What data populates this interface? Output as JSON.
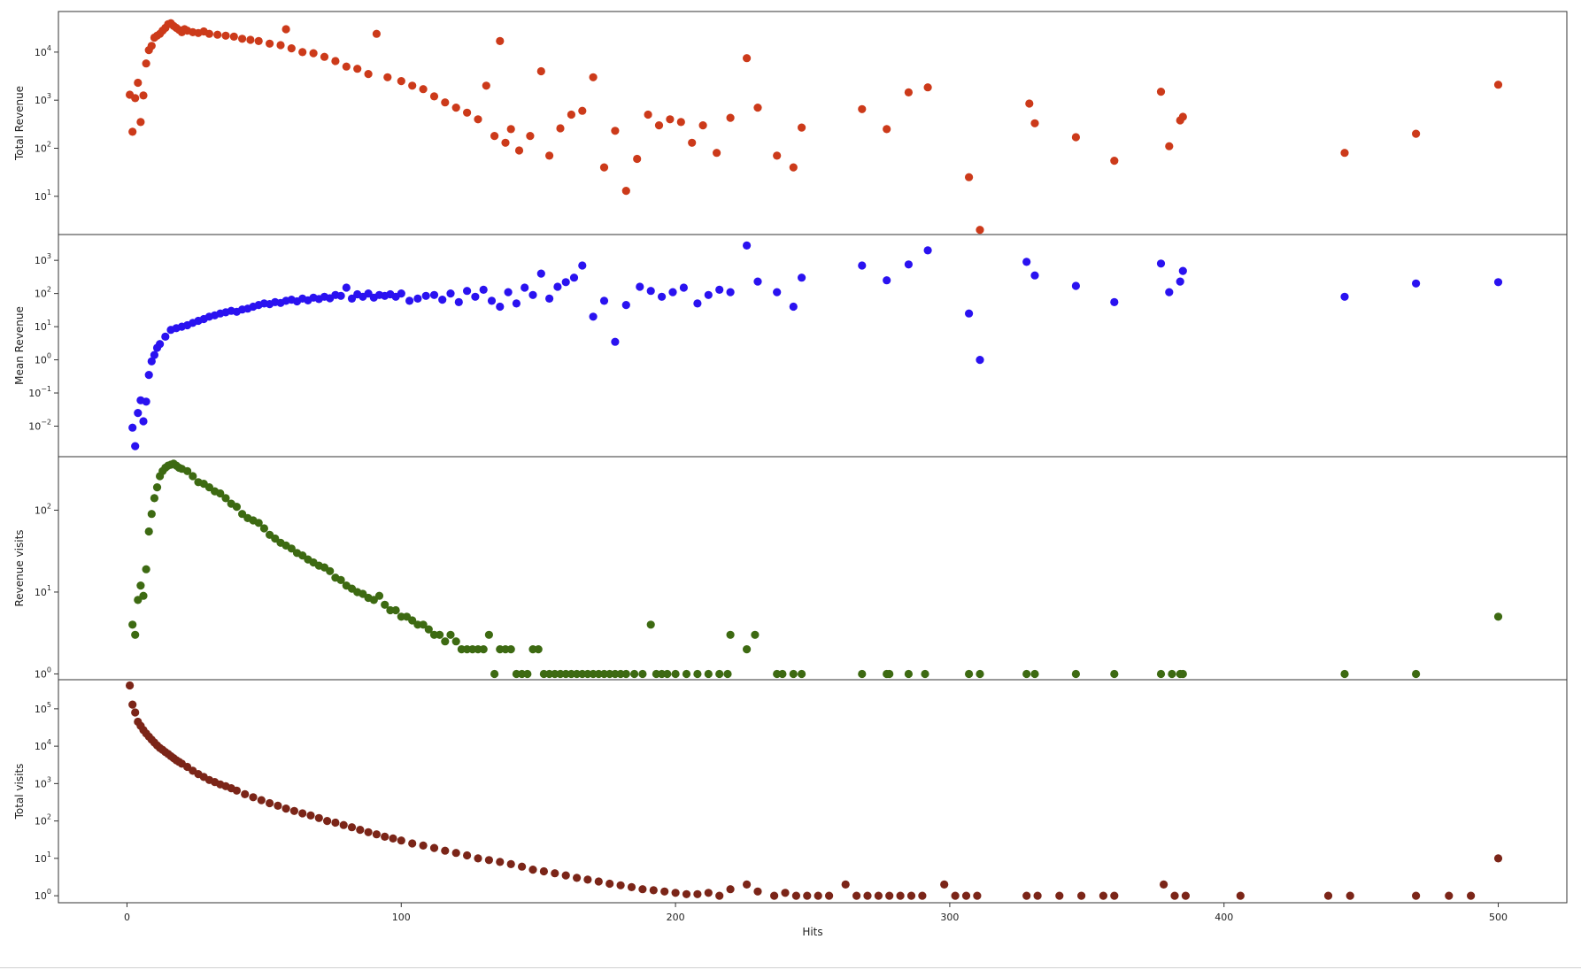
{
  "chart_data": [
    {
      "type": "scatter",
      "ylabel": "Total Revenue",
      "xlabel": "",
      "yscale": "log",
      "color": "#cc3a1a",
      "xlim": [
        -25,
        525
      ],
      "ylim": [
        1.6,
        70000
      ],
      "yticks": [
        {
          "v": 10,
          "e": "1"
        },
        {
          "v": 100,
          "e": "2"
        },
        {
          "v": 1000,
          "e": "3"
        },
        {
          "v": 10000,
          "e": "4"
        }
      ],
      "x": [
        1,
        2,
        3,
        4,
        5,
        6,
        7,
        8,
        9,
        10,
        11,
        12,
        13,
        14,
        15,
        16,
        17,
        18,
        19,
        20,
        21,
        22,
        24,
        26,
        28,
        30,
        33,
        36,
        39,
        42,
        45,
        48,
        52,
        56,
        58,
        60,
        64,
        68,
        72,
        76,
        80,
        84,
        88,
        91,
        95,
        100,
        104,
        108,
        112,
        116,
        120,
        124,
        128,
        131,
        134,
        136,
        138,
        140,
        143,
        147,
        151,
        154,
        158,
        162,
        166,
        170,
        174,
        178,
        182,
        186,
        190,
        194,
        198,
        202,
        206,
        210,
        215,
        220,
        226,
        230,
        237,
        243,
        246,
        268,
        277,
        285,
        292,
        307,
        311,
        329,
        331,
        346,
        360,
        377,
        380,
        384,
        385,
        444,
        470,
        500
      ],
      "y": [
        1300,
        220,
        1100,
        2300,
        350,
        1250,
        5800,
        11000,
        13500,
        20000,
        22000,
        24000,
        28000,
        32000,
        38000,
        40000,
        35000,
        32000,
        29000,
        26000,
        30000,
        28000,
        26000,
        25000,
        27000,
        24000,
        23000,
        22000,
        21000,
        19000,
        18000,
        17000,
        15000,
        14000,
        30000,
        12000,
        10000,
        9500,
        8000,
        6500,
        5000,
        4500,
        3500,
        24000,
        3000,
        2500,
        2000,
        1700,
        1200,
        900,
        700,
        550,
        400,
        2000,
        180,
        17000,
        130,
        250,
        90,
        180,
        4000,
        70,
        260,
        500,
        600,
        3000,
        40,
        230,
        13,
        60,
        500,
        300,
        400,
        350,
        130,
        300,
        80,
        430,
        7500,
        700,
        70,
        40,
        270,
        650,
        250,
        1450,
        1850,
        25,
        2,
        850,
        330,
        170,
        55,
        1500,
        110,
        380,
        450,
        80,
        200,
        2100
      ]
    },
    {
      "type": "scatter",
      "ylabel": "Mean Revenue",
      "xlabel": "",
      "yscale": "log",
      "color": "#2a12f0",
      "xlim": [
        -25,
        525
      ],
      "ylim": [
        0.0012,
        6000
      ],
      "yticks": [
        {
          "v": 0.01,
          "e": "−2"
        },
        {
          "v": 0.1,
          "e": "−1"
        },
        {
          "v": 1,
          "e": "0"
        },
        {
          "v": 10,
          "e": "1"
        },
        {
          "v": 100,
          "e": "2"
        },
        {
          "v": 1000,
          "e": "3"
        }
      ],
      "x": [
        2,
        3,
        4,
        5,
        6,
        7,
        8,
        9,
        10,
        11,
        12,
        14,
        16,
        18,
        20,
        22,
        24,
        26,
        28,
        30,
        32,
        34,
        36,
        38,
        40,
        42,
        44,
        46,
        48,
        50,
        52,
        54,
        56,
        58,
        60,
        62,
        64,
        66,
        68,
        70,
        72,
        74,
        76,
        78,
        80,
        82,
        84,
        86,
        88,
        90,
        92,
        94,
        96,
        98,
        100,
        103,
        106,
        109,
        112,
        115,
        118,
        121,
        124,
        127,
        130,
        133,
        136,
        139,
        142,
        145,
        148,
        151,
        154,
        157,
        160,
        163,
        166,
        170,
        174,
        178,
        182,
        187,
        191,
        195,
        199,
        203,
        208,
        212,
        216,
        220,
        226,
        230,
        237,
        243,
        246,
        268,
        277,
        285,
        292,
        307,
        311,
        328,
        331,
        346,
        360,
        377,
        380,
        384,
        385,
        444,
        470,
        500
      ],
      "y": [
        0.009,
        0.0025,
        0.025,
        0.06,
        0.014,
        0.055,
        0.35,
        0.9,
        1.4,
        2.3,
        3,
        5,
        8,
        9,
        10,
        11,
        13,
        15,
        17,
        20,
        22,
        25,
        27,
        30,
        28,
        33,
        35,
        40,
        45,
        50,
        48,
        55,
        52,
        60,
        65,
        58,
        70,
        62,
        75,
        68,
        80,
        72,
        90,
        85,
        150,
        70,
        95,
        80,
        100,
        75,
        90,
        85,
        95,
        80,
        100,
        60,
        70,
        85,
        90,
        65,
        100,
        55,
        120,
        80,
        130,
        60,
        40,
        110,
        50,
        150,
        90,
        400,
        70,
        160,
        220,
        300,
        700,
        20,
        60,
        3.5,
        45,
        160,
        120,
        80,
        110,
        150,
        50,
        90,
        130,
        110,
        2800,
        230,
        110,
        40,
        300,
        700,
        250,
        750,
        2000,
        25,
        1,
        900,
        350,
        170,
        55,
        800,
        110,
        230,
        480,
        80,
        200,
        220
      ]
    },
    {
      "type": "scatter",
      "ylabel": "Revenue visits",
      "xlabel": "",
      "yscale": "log",
      "color": "#3d6a12",
      "xlim": [
        -25,
        525
      ],
      "ylim": [
        0.85,
        450
      ],
      "yticks": [
        {
          "v": 1,
          "e": "0"
        },
        {
          "v": 10,
          "e": "1"
        },
        {
          "v": 100,
          "e": "2"
        }
      ],
      "x": [
        2,
        3,
        4,
        5,
        6,
        7,
        8,
        9,
        10,
        11,
        12,
        13,
        14,
        15,
        16,
        17,
        18,
        19,
        20,
        22,
        24,
        26,
        28,
        30,
        32,
        34,
        36,
        38,
        40,
        42,
        44,
        46,
        48,
        50,
        52,
        54,
        56,
        58,
        60,
        62,
        64,
        66,
        68,
        70,
        72,
        74,
        76,
        78,
        80,
        82,
        84,
        86,
        88,
        90,
        92,
        94,
        96,
        98,
        100,
        102,
        104,
        106,
        108,
        110,
        112,
        114,
        116,
        118,
        120,
        122,
        124,
        126,
        128,
        130,
        132,
        134,
        136,
        138,
        140,
        142,
        144,
        146,
        148,
        150,
        152,
        154,
        156,
        158,
        160,
        162,
        164,
        166,
        168,
        170,
        172,
        174,
        176,
        178,
        180,
        182,
        185,
        188,
        191,
        193,
        195,
        197,
        200,
        204,
        208,
        212,
        216,
        219,
        220,
        226,
        229,
        237,
        239,
        243,
        246,
        268,
        277,
        278,
        285,
        291,
        307,
        311,
        328,
        331,
        346,
        360,
        377,
        381,
        384,
        385,
        444,
        470,
        500
      ],
      "y": [
        4,
        3,
        8,
        12,
        9,
        19,
        55,
        90,
        140,
        190,
        260,
        300,
        330,
        350,
        360,
        370,
        350,
        330,
        320,
        300,
        260,
        220,
        210,
        190,
        170,
        160,
        140,
        120,
        110,
        90,
        80,
        75,
        70,
        60,
        50,
        45,
        40,
        37,
        34,
        30,
        28,
        25,
        23,
        21,
        20,
        18,
        15,
        14,
        12,
        11,
        10,
        9.5,
        8.5,
        8,
        9,
        7,
        6,
        6,
        5,
        5,
        4.5,
        4,
        4,
        3.5,
        3,
        3,
        2.5,
        3,
        2.5,
        2,
        2,
        2,
        2,
        2,
        3,
        1,
        2,
        2,
        2,
        1,
        1,
        1,
        2,
        2,
        1,
        1,
        1,
        1,
        1,
        1,
        1,
        1,
        1,
        1,
        1,
        1,
        1,
        1,
        1,
        1,
        1,
        1,
        4,
        1,
        1,
        1,
        1,
        1,
        1,
        1,
        1,
        1,
        3,
        2,
        3,
        1,
        1,
        1,
        1,
        1,
        1,
        1,
        1,
        1,
        1,
        1,
        1,
        1,
        1,
        1,
        1,
        1,
        1,
        1,
        1,
        1,
        5
      ]
    },
    {
      "type": "scatter",
      "ylabel": "Total visits",
      "xlabel": "Hits",
      "yscale": "log",
      "color": "#7b2518",
      "xlim": [
        -25,
        525
      ],
      "ylim": [
        0.65,
        600000
      ],
      "yticks": [
        {
          "v": 1,
          "e": "0"
        },
        {
          "v": 10,
          "e": "1"
        },
        {
          "v": 100,
          "e": "2"
        },
        {
          "v": 1000,
          "e": "3"
        },
        {
          "v": 10000,
          "e": "4"
        },
        {
          "v": 100000,
          "e": "5"
        }
      ],
      "xticks": [
        0,
        100,
        200,
        300,
        400,
        500
      ],
      "x": [
        1,
        2,
        3,
        4,
        5,
        6,
        7,
        8,
        9,
        10,
        11,
        12,
        13,
        14,
        15,
        16,
        17,
        18,
        19,
        20,
        22,
        24,
        26,
        28,
        30,
        32,
        34,
        36,
        38,
        40,
        43,
        46,
        49,
        52,
        55,
        58,
        61,
        64,
        67,
        70,
        73,
        76,
        79,
        82,
        85,
        88,
        91,
        94,
        97,
        100,
        104,
        108,
        112,
        116,
        120,
        124,
        128,
        132,
        136,
        140,
        144,
        148,
        152,
        156,
        160,
        164,
        168,
        172,
        176,
        180,
        184,
        188,
        192,
        196,
        200,
        204,
        208,
        212,
        216,
        220,
        226,
        230,
        236,
        240,
        244,
        248,
        252,
        256,
        262,
        266,
        270,
        274,
        278,
        282,
        286,
        290,
        298,
        302,
        306,
        310,
        328,
        332,
        340,
        348,
        356,
        360,
        378,
        382,
        386,
        406,
        438,
        446,
        470,
        482,
        490,
        500
      ],
      "y": [
        420000,
        130000,
        80000,
        45000,
        35000,
        27000,
        22000,
        18000,
        15000,
        12500,
        10500,
        9000,
        8000,
        7000,
        6200,
        5400,
        4800,
        4200,
        3800,
        3400,
        2800,
        2200,
        1800,
        1500,
        1250,
        1100,
        950,
        850,
        750,
        650,
        520,
        430,
        360,
        300,
        255,
        215,
        185,
        160,
        140,
        120,
        100,
        90,
        78,
        68,
        58,
        50,
        44,
        38,
        34,
        30,
        25,
        22,
        19,
        16,
        14,
        12,
        10,
        9,
        8,
        7,
        6,
        5,
        4.5,
        4,
        3.5,
        3,
        2.7,
        2.4,
        2.1,
        1.9,
        1.7,
        1.5,
        1.4,
        1.3,
        1.2,
        1.1,
        1.1,
        1.2,
        1,
        1.5,
        2,
        1.3,
        1,
        1.2,
        1,
        1,
        1,
        1,
        2,
        1,
        1,
        1,
        1,
        1,
        1,
        1,
        2,
        1,
        1,
        1,
        1,
        1,
        1,
        1,
        1,
        1,
        2,
        1,
        1,
        1,
        1,
        1,
        1,
        1,
        1,
        10
      ]
    }
  ]
}
